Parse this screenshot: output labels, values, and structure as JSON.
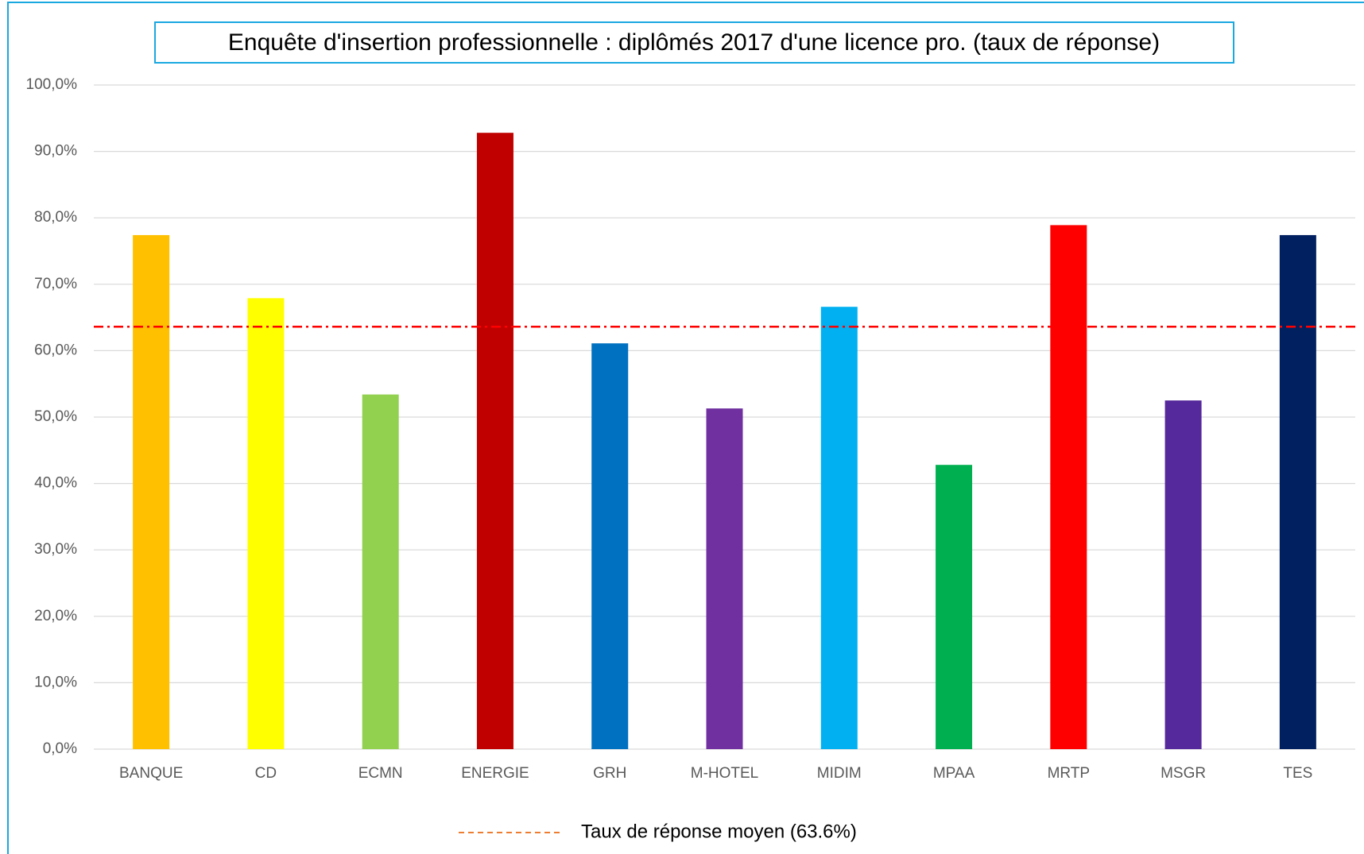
{
  "chart_data": {
    "type": "bar",
    "title": "Enquête d'insertion professionnelle : diplômés 2017 d'une licence pro. (taux de réponse)",
    "categories": [
      "BANQUE",
      "CD",
      "ECMN",
      "ENERGIE",
      "GRH",
      "M-HOTEL",
      "MIDIM",
      "MPAA",
      "MRTP",
      "MSGR",
      "TES"
    ],
    "values": [
      77.4,
      67.9,
      53.4,
      92.8,
      61.1,
      51.3,
      66.6,
      42.8,
      78.9,
      52.5,
      77.4
    ],
    "colors": [
      "#ffc000",
      "#ffff00",
      "#92d050",
      "#c00000",
      "#0070c0",
      "#7030a0",
      "#00b0f0",
      "#00b050",
      "#ff0000",
      "#55289b",
      "#002060"
    ],
    "ylim": [
      0,
      100
    ],
    "yticks": [
      {
        "value": 0,
        "label": "0,0%"
      },
      {
        "value": 10,
        "label": "10,0%"
      },
      {
        "value": 20,
        "label": "20,0%"
      },
      {
        "value": 30,
        "label": "30,0%"
      },
      {
        "value": 40,
        "label": "40,0%"
      },
      {
        "value": 50,
        "label": "50,0%"
      },
      {
        "value": 60,
        "label": "60,0%"
      },
      {
        "value": 70,
        "label": "70,0%"
      },
      {
        "value": 80,
        "label": "80,0%"
      },
      {
        "value": 90,
        "label": "90,0%"
      },
      {
        "value": 100,
        "label": "100,0%"
      }
    ],
    "grid": true,
    "reference_line": {
      "name": "Taux de réponse moyen (63.6%)",
      "value": 63.6,
      "color": "#ff0000",
      "legend_color": "#ed7d31"
    }
  }
}
